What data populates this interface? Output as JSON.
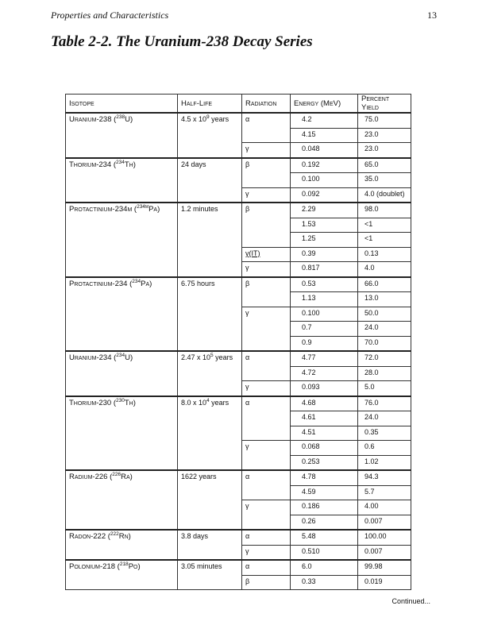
{
  "header": {
    "running_title": "Properties and Characteristics",
    "page_number": "13"
  },
  "table_title": "Table 2-2. The Uranium-238 Decay Series",
  "columns": [
    "Isotope",
    "Half-Life",
    "Radiation",
    "Energy (MeV)",
    "Percent Yield"
  ],
  "isotopes": [
    {
      "name": "Uranium-238",
      "mass": "238",
      "symbol": "U",
      "half_life": {
        "base": "4.5 x 10",
        "exp": "9",
        "unit": " years"
      },
      "radiations": [
        {
          "type": "α",
          "lines": [
            {
              "energy": "4.2",
              "yield": "75.0"
            },
            {
              "energy": "4.15",
              "yield": "23.0"
            }
          ]
        },
        {
          "type": "γ",
          "lines": [
            {
              "energy": "0.048",
              "yield": "23.0"
            }
          ]
        }
      ]
    },
    {
      "name": "Thorium-234",
      "mass": "234",
      "symbol": "Th",
      "half_life": {
        "base": "24 days"
      },
      "radiations": [
        {
          "type": "β",
          "lines": [
            {
              "energy": "0.192",
              "yield": "65.0"
            },
            {
              "energy": "0.100",
              "yield": "35.0"
            }
          ]
        },
        {
          "type": "γ",
          "lines": [
            {
              "energy": "0.092",
              "yield": "4.0 (doublet)"
            }
          ]
        }
      ]
    },
    {
      "name": "Protactinium-234m",
      "mass": "234m",
      "symbol": "Pa",
      "half_life": {
        "base": "1.2 minutes"
      },
      "radiations": [
        {
          "type": "β",
          "lines": [
            {
              "energy": "2.29",
              "yield": "98.0"
            },
            {
              "energy": "1.53",
              "yield": "<1"
            },
            {
              "energy": "1.25",
              "yield": "<1"
            }
          ]
        },
        {
          "type": "γ(IT)",
          "lines": [
            {
              "energy": "0.39",
              "yield": "0.13"
            }
          ]
        },
        {
          "type": "γ",
          "lines": [
            {
              "energy": "0.817",
              "yield": "4.0"
            }
          ]
        }
      ]
    },
    {
      "name": "Protactinium-234",
      "mass": "234",
      "symbol": "Pa",
      "half_life": {
        "base": "6.75 hours"
      },
      "radiations": [
        {
          "type": "β",
          "lines": [
            {
              "energy": "0.53",
              "yield": "66.0"
            },
            {
              "energy": "1.13",
              "yield": "13.0"
            }
          ]
        },
        {
          "type": "γ",
          "lines": [
            {
              "energy": "0.100",
              "yield": "50.0"
            },
            {
              "energy": "0.7",
              "yield": "24.0"
            },
            {
              "energy": "0.9",
              "yield": "70.0"
            }
          ]
        }
      ]
    },
    {
      "name": "Uranium-234",
      "mass": "234",
      "symbol": "U",
      "half_life": {
        "base": "2.47 x 10",
        "exp": "5",
        "unit": " years"
      },
      "radiations": [
        {
          "type": "α",
          "lines": [
            {
              "energy": "4.77",
              "yield": "72.0"
            },
            {
              "energy": "4.72",
              "yield": "28.0"
            }
          ]
        },
        {
          "type": "γ",
          "lines": [
            {
              "energy": "0.093",
              "yield": "5.0"
            }
          ]
        }
      ]
    },
    {
      "name": "Thorium-230",
      "mass": "230",
      "symbol": "Th",
      "half_life": {
        "base": "8.0 x 10",
        "exp": "4",
        "unit": " years"
      },
      "radiations": [
        {
          "type": "α",
          "lines": [
            {
              "energy": "4.68",
              "yield": "76.0"
            },
            {
              "energy": "4.61",
              "yield": "24.0"
            },
            {
              "energy": "4.51",
              "yield": "0.35"
            }
          ]
        },
        {
          "type": "γ",
          "lines": [
            {
              "energy": "0.068",
              "yield": "0.6"
            },
            {
              "energy": "0.253",
              "yield": "1.02"
            }
          ]
        }
      ]
    },
    {
      "name": "Radium-226",
      "mass": "226",
      "symbol": "Ra",
      "half_life": {
        "base": "1622 years"
      },
      "radiations": [
        {
          "type": "α",
          "lines": [
            {
              "energy": "4.78",
              "yield": "94.3"
            },
            {
              "energy": "4.59",
              "yield": "5.7"
            }
          ]
        },
        {
          "type": "γ",
          "lines": [
            {
              "energy": "0.186",
              "yield": "4.00"
            },
            {
              "energy": "0.26",
              "yield": "0.007"
            }
          ]
        }
      ]
    },
    {
      "name": "Radon-222",
      "mass": "222",
      "symbol": "Rn",
      "half_life": {
        "base": "3.8 days"
      },
      "radiations": [
        {
          "type": "α",
          "lines": [
            {
              "energy": "5.48",
              "yield": "100.00"
            }
          ]
        },
        {
          "type": "γ",
          "lines": [
            {
              "energy": "0.510",
              "yield": "0.007"
            }
          ]
        }
      ]
    },
    {
      "name": "Polonium-218",
      "mass": "218",
      "symbol": "Po",
      "half_life": {
        "base": "3.05 minutes"
      },
      "radiations": [
        {
          "type": "α",
          "lines": [
            {
              "energy": "6.0",
              "yield": "99.98"
            }
          ]
        },
        {
          "type": "β",
          "lines": [
            {
              "energy": "0.33",
              "yield": "0.019"
            }
          ]
        }
      ]
    }
  ],
  "footer": {
    "continued": "Continued..."
  }
}
